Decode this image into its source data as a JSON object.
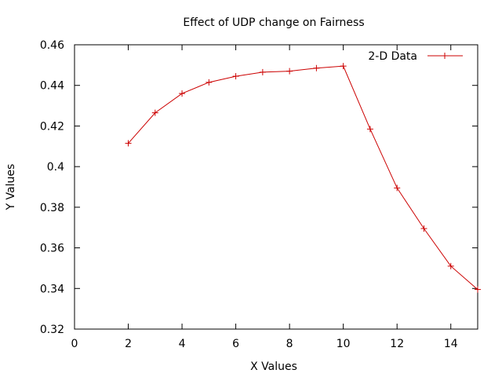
{
  "chart_data": {
    "type": "line",
    "title": "Effect of UDP change on Fairness",
    "xlabel": "X Values",
    "ylabel": "Y Values",
    "xlim": [
      0,
      15
    ],
    "ylim": [
      0.32,
      0.46
    ],
    "xticks": [
      0,
      2,
      4,
      6,
      8,
      10,
      12,
      14
    ],
    "yticks": [
      0.32,
      0.34,
      0.36,
      0.38,
      0.4,
      0.42,
      0.44,
      0.46
    ],
    "ytick_labels": [
      "0.32",
      "0.34",
      "0.36",
      "0.38",
      "0.4",
      "0.42",
      "0.44",
      "0.46"
    ],
    "grid": false,
    "legend_position": "top-right",
    "series": [
      {
        "name": "2-D Data",
        "color": "#cc0000",
        "marker": "plus",
        "x": [
          2,
          3,
          4,
          5,
          6,
          7,
          8,
          9,
          10,
          11,
          12,
          13,
          14,
          15
        ],
        "y": [
          0.4115,
          0.4265,
          0.436,
          0.4415,
          0.4445,
          0.4465,
          0.447,
          0.4485,
          0.4495,
          0.4185,
          0.3895,
          0.3695,
          0.351,
          0.3395
        ]
      }
    ]
  }
}
